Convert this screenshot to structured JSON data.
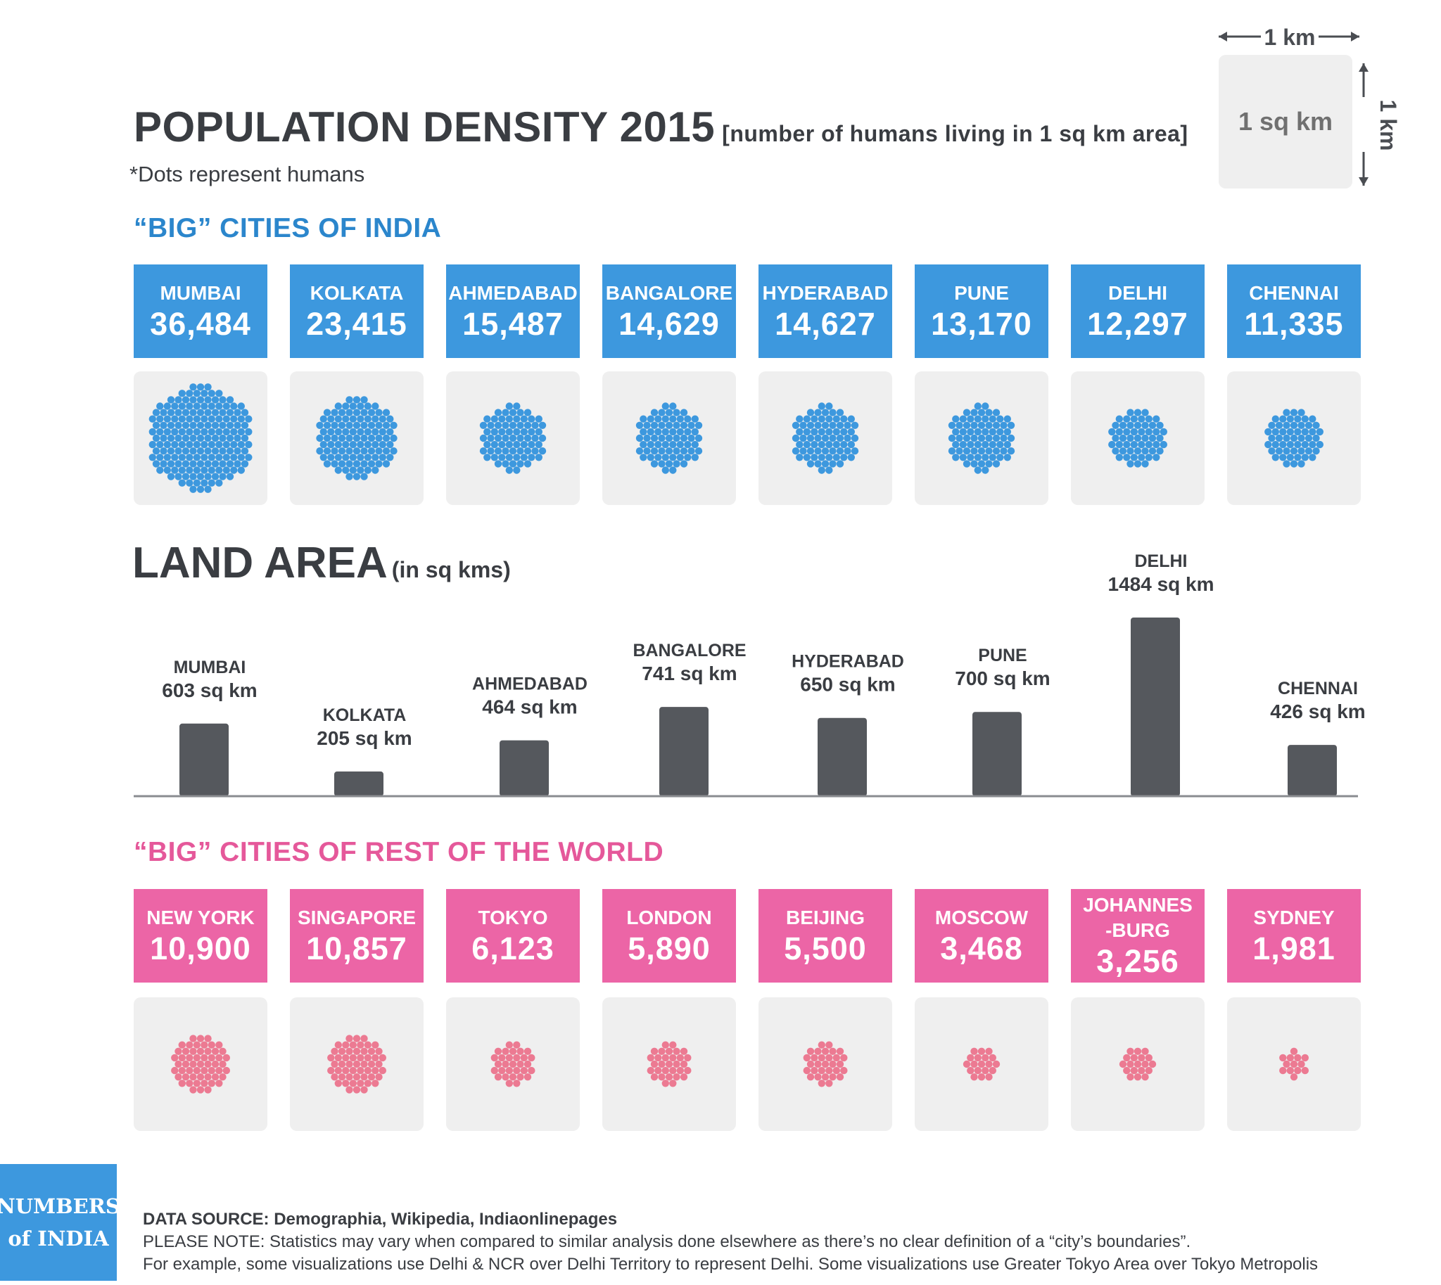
{
  "header": {
    "title": "POPULATION DENSITY 2015",
    "title_note": "[number of humans living in 1 sq km area]",
    "subtitle": "*Dots represent humans"
  },
  "scale_legend": {
    "box_label": "1 sq km",
    "width_label": "1 km",
    "height_label": "1 km"
  },
  "india": {
    "heading": "“BIG” CITIES OF INDIA",
    "color": "#3d98de",
    "cities": [
      {
        "name": "MUMBAI",
        "value": "36,484",
        "density": 36484
      },
      {
        "name": "KOLKATA",
        "value": "23,415",
        "density": 23415
      },
      {
        "name": "AHMEDABAD",
        "value": "15,487",
        "density": 15487
      },
      {
        "name": "BANGALORE",
        "value": "14,629",
        "density": 14629
      },
      {
        "name": "HYDERABAD",
        "value": "14,627",
        "density": 14627
      },
      {
        "name": "PUNE",
        "value": "13,170",
        "density": 13170
      },
      {
        "name": "DELHI",
        "value": "12,297",
        "density": 12297
      },
      {
        "name": "CHENNAI",
        "value": "11,335",
        "density": 11335
      }
    ]
  },
  "land_area": {
    "heading": "LAND AREA",
    "unit": "(in sq kms)",
    "bar_color": "#55585d"
  },
  "world": {
    "heading": "“BIG” CITIES OF REST OF THE WORLD",
    "color": "#ec65a6",
    "cities": [
      {
        "name": "NEW YORK",
        "value": "10,900",
        "density": 10900
      },
      {
        "name": "SINGAPORE",
        "value": "10,857",
        "density": 10857
      },
      {
        "name": "TOKYO",
        "value": "6,123",
        "density": 6123
      },
      {
        "name": "LONDON",
        "value": "5,890",
        "density": 5890
      },
      {
        "name": "BEIJING",
        "value": "5,500",
        "density": 5500
      },
      {
        "name": "MOSCOW",
        "value": "3,468",
        "density": 3468
      },
      {
        "name": "JOHANNES\n-BURG",
        "value": "3,256",
        "density": 3256
      },
      {
        "name": "SYDNEY",
        "value": "1,981",
        "density": 1981
      }
    ]
  },
  "chart_data": {
    "type": "bar",
    "title": "LAND AREA",
    "ylabel": "",
    "categories": [
      "MUMBAI",
      "KOLKATA",
      "AHMEDABAD",
      "BANGALORE",
      "HYDERABAD",
      "PUNE",
      "DELHI",
      "CHENNAI"
    ],
    "values": [
      603,
      205,
      464,
      741,
      650,
      700,
      1484,
      426
    ],
    "data_labels": [
      "603 sq km",
      "205 sq km",
      "464 sq km",
      "741 sq km",
      "650 sq km",
      "700 sq km",
      "1484 sq km",
      "426 sq km"
    ],
    "ylim": [
      0,
      1484
    ],
    "grid": false,
    "legend": "none"
  },
  "footer": {
    "logo_line1": "NUMBERS",
    "logo_line2": "of INDIA",
    "source": "DATA SOURCE: Demographia, Wikipedia, Indiaonlinepages",
    "note1": "PLEASE NOTE: Statistics may vary when compared to similar analysis done elsewhere as there’s no clear definition of a “city’s boundaries”.",
    "note2": "For example, some visualizations use Delhi & NCR over Delhi Territory to represent Delhi. Some visualizations use Greater Tokyo Area over Tokyo Metropolis"
  }
}
